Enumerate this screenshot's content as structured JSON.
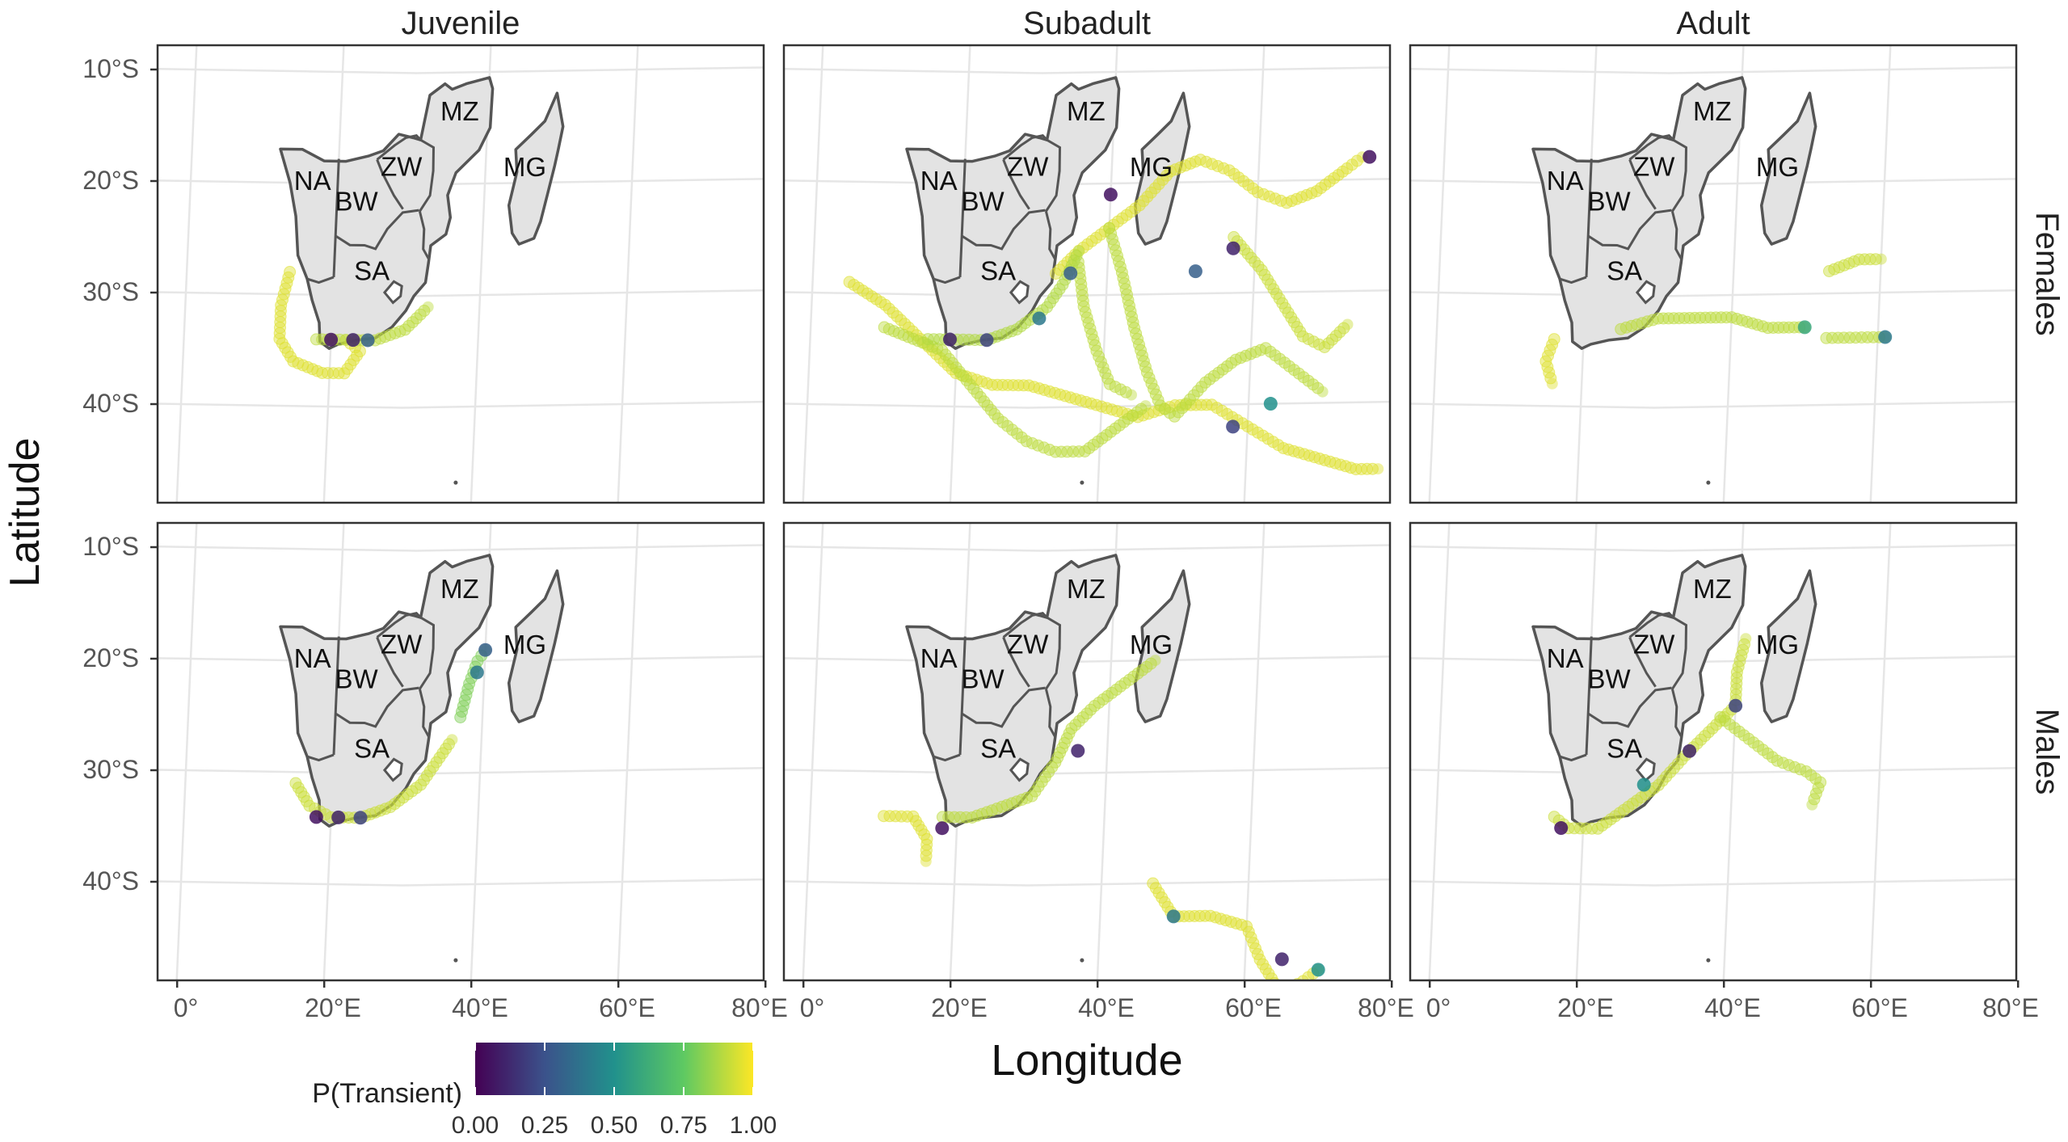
{
  "axes": {
    "xlabel": "Longitude",
    "ylabel": "Latitude",
    "x_ticks": [
      "0°",
      "20°E",
      "40°E",
      "60°E",
      "80°E"
    ],
    "y_ticks": [
      "10°S",
      "20°S",
      "30°S",
      "40°S"
    ]
  },
  "facets": {
    "columns": [
      "Juvenile",
      "Subadult",
      "Adult"
    ],
    "rows": [
      "Females",
      "Males"
    ]
  },
  "country_labels": [
    "NA",
    "BW",
    "ZW",
    "MZ",
    "SA",
    "MG"
  ],
  "legend": {
    "title": "P(Transient)",
    "ticks": [
      "0.00",
      "0.25",
      "0.50",
      "0.75",
      "1.00"
    ],
    "colors": [
      "#440154",
      "#3b528b",
      "#21918c",
      "#5ec962",
      "#fde725"
    ]
  },
  "chart_data": {
    "type": "scatter",
    "x_range_lon": [
      -3,
      80
    ],
    "y_range_lat": [
      -49,
      -7
    ],
    "color_variable": "P(Transient)",
    "color_range": [
      0,
      1
    ],
    "panels": [
      {
        "facet_col": "Juvenile",
        "facet_row": "Females",
        "tracks": [
          {
            "p": 0.95,
            "points": [
              [
                14,
                -28
              ],
              [
                13,
                -31
              ],
              [
                13,
                -34
              ],
              [
                15,
                -36
              ],
              [
                19,
                -37
              ],
              [
                22,
                -37
              ],
              [
                24,
                -35
              ],
              [
                22,
                -34
              ]
            ]
          },
          {
            "p": 0.9,
            "points": [
              [
                18,
                -34
              ],
              [
                22,
                -34
              ],
              [
                26,
                -34
              ],
              [
                30,
                -33
              ],
              [
                33,
                -31
              ]
            ]
          }
        ],
        "hotspots": [
          {
            "lon": 20,
            "lat": -34,
            "p": 0.05
          },
          {
            "lon": 23,
            "lat": -34,
            "p": 0.1
          },
          {
            "lon": 25,
            "lat": -34,
            "p": 0.3
          }
        ]
      },
      {
        "facet_col": "Subadult",
        "facet_row": "Females",
        "tracks": [
          {
            "p": 0.95,
            "points": [
              [
                5,
                -29
              ],
              [
                10,
                -31
              ],
              [
                15,
                -34
              ],
              [
                20,
                -37
              ],
              [
                25,
                -38
              ],
              [
                30,
                -38
              ],
              [
                35,
                -39
              ],
              [
                40,
                -40
              ],
              [
                45,
                -41
              ],
              [
                50,
                -40
              ],
              [
                55,
                -40
              ],
              [
                60,
                -42
              ],
              [
                65,
                -44
              ],
              [
                70,
                -45
              ],
              [
                75,
                -46
              ],
              [
                78,
                -46
              ]
            ]
          },
          {
            "p": 0.9,
            "points": [
              [
                10,
                -33
              ],
              [
                14,
                -34
              ],
              [
                18,
                -35
              ],
              [
                22,
                -38
              ],
              [
                26,
                -41
              ],
              [
                30,
                -43
              ],
              [
                34,
                -44
              ],
              [
                38,
                -44
              ],
              [
                42,
                -42
              ],
              [
                46,
                -40
              ]
            ]
          },
          {
            "p": 0.95,
            "points": [
              [
                33,
                -28
              ],
              [
                36,
                -26
              ],
              [
                40,
                -24
              ],
              [
                44,
                -22
              ],
              [
                48,
                -19
              ],
              [
                52,
                -18
              ],
              [
                56,
                -19
              ],
              [
                60,
                -21
              ],
              [
                64,
                -22
              ],
              [
                68,
                -21
              ],
              [
                72,
                -19
              ],
              [
                74,
                -18
              ]
            ]
          },
          {
            "p": 0.9,
            "points": [
              [
                40,
                -24
              ],
              [
                42,
                -28
              ],
              [
                44,
                -33
              ],
              [
                46,
                -37
              ],
              [
                48,
                -40
              ],
              [
                50,
                -41
              ],
              [
                54,
                -38
              ],
              [
                58,
                -36
              ],
              [
                62,
                -35
              ],
              [
                66,
                -37
              ],
              [
                70,
                -39
              ]
            ]
          },
          {
            "p": 0.92,
            "points": [
              [
                57,
                -25
              ],
              [
                61,
                -28
              ],
              [
                64,
                -31
              ],
              [
                67,
                -34
              ],
              [
                70,
                -35
              ],
              [
                73,
                -33
              ]
            ]
          },
          {
            "p": 0.9,
            "points": [
              [
                36,
                -27
              ],
              [
                37,
                -31
              ],
              [
                39,
                -35
              ],
              [
                41,
                -38
              ],
              [
                44,
                -39
              ]
            ]
          },
          {
            "p": 0.88,
            "points": [
              [
                16,
                -34
              ],
              [
                20,
                -34
              ],
              [
                24,
                -34
              ],
              [
                28,
                -33
              ],
              [
                32,
                -31
              ],
              [
                34,
                -29
              ],
              [
                36,
                -26
              ]
            ]
          }
        ],
        "hotspots": [
          {
            "lon": 19,
            "lat": -34,
            "p": 0.1
          },
          {
            "lon": 24,
            "lat": -34,
            "p": 0.2
          },
          {
            "lon": 31,
            "lat": -32,
            "p": 0.4
          },
          {
            "lon": 35,
            "lat": -28,
            "p": 0.3
          },
          {
            "lon": 40,
            "lat": -21,
            "p": 0.05
          },
          {
            "lon": 75,
            "lat": -18,
            "p": 0.05
          },
          {
            "lon": 57,
            "lat": -26,
            "p": 0.1
          },
          {
            "lon": 52,
            "lat": -28,
            "p": 0.3
          },
          {
            "lon": 63,
            "lat": -40,
            "p": 0.5
          },
          {
            "lon": 58,
            "lat": -42,
            "p": 0.2
          }
        ]
      },
      {
        "facet_col": "Adult",
        "facet_row": "Females",
        "tracks": [
          {
            "p": 0.95,
            "points": [
              [
                16,
                -34
              ],
              [
                15,
                -36
              ],
              [
                16,
                -38
              ]
            ]
          },
          {
            "p": 0.9,
            "points": [
              [
                25,
                -33
              ],
              [
                30,
                -32
              ],
              [
                35,
                -32
              ],
              [
                40,
                -32
              ],
              [
                45,
                -33
              ],
              [
                50,
                -33
              ]
            ]
          },
          {
            "p": 0.92,
            "points": [
              [
                53,
                -28
              ],
              [
                57,
                -27
              ],
              [
                60,
                -27
              ]
            ]
          },
          {
            "p": 0.9,
            "points": [
              [
                53,
                -34
              ],
              [
                57,
                -34
              ],
              [
                61,
                -34
              ]
            ]
          }
        ],
        "hotspots": [
          {
            "lon": 50,
            "lat": -33,
            "p": 0.6
          },
          {
            "lon": 61,
            "lat": -34,
            "p": 0.4
          }
        ]
      },
      {
        "facet_col": "Juvenile",
        "facet_row": "Males",
        "tracks": [
          {
            "p": 0.92,
            "points": [
              [
                15,
                -31
              ],
              [
                17,
                -33
              ],
              [
                20,
                -34
              ],
              [
                24,
                -34
              ],
              [
                28,
                -33
              ],
              [
                32,
                -31
              ],
              [
                34,
                -29
              ],
              [
                36,
                -27
              ]
            ]
          },
          {
            "p": 0.8,
            "points": [
              [
                37,
                -25
              ],
              [
                38,
                -22
              ],
              [
                39,
                -20
              ],
              [
                40,
                -19
              ]
            ]
          }
        ],
        "hotspots": [
          {
            "lon": 18,
            "lat": -34,
            "p": 0.05
          },
          {
            "lon": 21,
            "lat": -34,
            "p": 0.1
          },
          {
            "lon": 24,
            "lat": -34,
            "p": 0.2
          },
          {
            "lon": 39,
            "lat": -21,
            "p": 0.4
          },
          {
            "lon": 40,
            "lat": -19,
            "p": 0.3
          }
        ]
      },
      {
        "facet_col": "Subadult",
        "facet_row": "Males",
        "tracks": [
          {
            "p": 0.95,
            "points": [
              [
                10,
                -34
              ],
              [
                14,
                -34
              ],
              [
                16,
                -36
              ],
              [
                16,
                -38
              ]
            ]
          },
          {
            "p": 0.9,
            "points": [
              [
                18,
                -34
              ],
              [
                22,
                -34
              ],
              [
                26,
                -33
              ],
              [
                30,
                -32
              ],
              [
                33,
                -29
              ],
              [
                35,
                -26
              ],
              [
                38,
                -24
              ],
              [
                42,
                -22
              ],
              [
                46,
                -20
              ]
            ]
          },
          {
            "p": 0.95,
            "points": [
              [
                47,
                -40
              ],
              [
                50,
                -43
              ],
              [
                55,
                -43
              ],
              [
                60,
                -44
              ],
              [
                62,
                -47
              ],
              [
                65,
                -50
              ],
              [
                68,
                -49
              ],
              [
                70,
                -48
              ]
            ]
          }
        ],
        "hotspots": [
          {
            "lon": 18,
            "lat": -35,
            "p": 0.05
          },
          {
            "lon": 36,
            "lat": -28,
            "p": 0.1
          },
          {
            "lon": 50,
            "lat": -43,
            "p": 0.4
          },
          {
            "lon": 65,
            "lat": -47,
            "p": 0.1
          },
          {
            "lon": 70,
            "lat": -48,
            "p": 0.5
          }
        ]
      },
      {
        "facet_col": "Adult",
        "facet_row": "Males",
        "tracks": [
          {
            "p": 0.92,
            "points": [
              [
                16,
                -34
              ],
              [
                18,
                -35
              ],
              [
                22,
                -35
              ],
              [
                26,
                -33
              ],
              [
                30,
                -31
              ],
              [
                34,
                -28
              ],
              [
                37,
                -26
              ],
              [
                40,
                -24
              ],
              [
                40,
                -21
              ],
              [
                41,
                -18
              ]
            ]
          },
          {
            "p": 0.9,
            "points": [
              [
                38,
                -25
              ],
              [
                42,
                -27
              ],
              [
                46,
                -29
              ],
              [
                50,
                -30
              ],
              [
                52,
                -31
              ],
              [
                51,
                -33
              ]
            ]
          }
        ],
        "hotspots": [
          {
            "lon": 17,
            "lat": -35,
            "p": 0.05
          },
          {
            "lon": 28,
            "lat": -31,
            "p": 0.5
          },
          {
            "lon": 34,
            "lat": -28,
            "p": 0.1
          },
          {
            "lon": 40,
            "lat": -24,
            "p": 0.2
          }
        ]
      }
    ]
  }
}
